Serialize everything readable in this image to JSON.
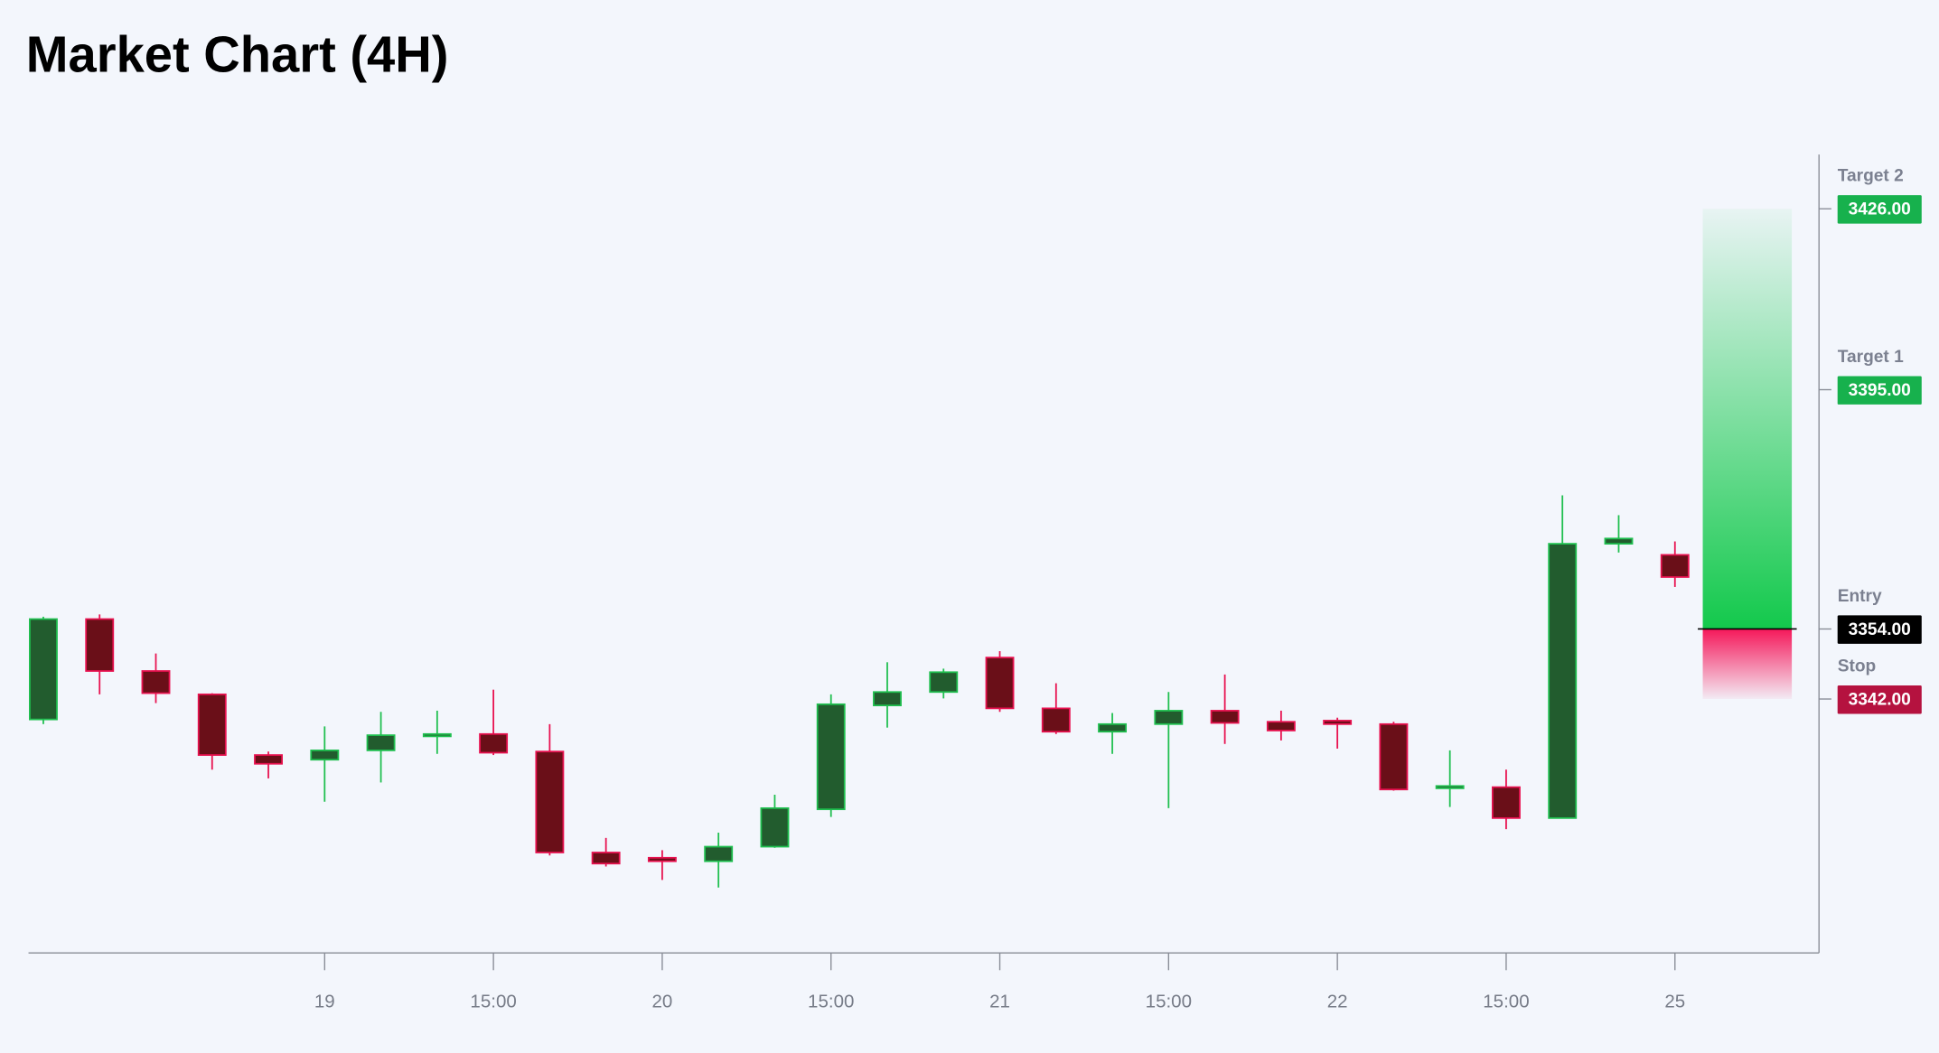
{
  "chart_data": {
    "type": "candlestick",
    "title": "Market Chart (4H)",
    "categories": [
      null,
      null,
      null,
      null,
      null,
      "19",
      null,
      null,
      "15:00",
      null,
      null,
      "20",
      null,
      null,
      "15:00",
      null,
      null,
      "21",
      null,
      null,
      "15:00",
      null,
      null,
      "22",
      null,
      null,
      "15:00",
      null,
      null,
      "25"
    ],
    "open": [
      3338.5,
      3355.7,
      3346.8,
      3342.8,
      3332.4,
      3331.6,
      3333.2,
      3335.6,
      3336.0,
      3333.0,
      3315.7,
      3314.8,
      3314.2,
      3316.7,
      3323.1,
      3340.9,
      3343.2,
      3349.1,
      3340.4,
      3336.4,
      3337.7,
      3340.0,
      3338.1,
      3338.3,
      3337.7,
      3326.7,
      3326.9,
      3321.6,
      3368.6,
      3366.7
    ],
    "high": [
      3356.1,
      3356.5,
      3349.8,
      3343.0,
      3333.0,
      3337.3,
      3339.8,
      3340.0,
      3343.6,
      3337.7,
      3318.2,
      3316.1,
      3319.1,
      3325.6,
      3342.8,
      3348.3,
      3347.2,
      3350.2,
      3344.7,
      3339.6,
      3343.2,
      3346.2,
      3340.0,
      3338.8,
      3338.1,
      3333.2,
      3329.9,
      3376.9,
      3373.5,
      3369.0
    ],
    "low": [
      3337.7,
      3342.8,
      3341.3,
      3329.9,
      3328.4,
      3324.4,
      3327.7,
      3332.6,
      3332.4,
      3315.2,
      3313.3,
      3311.0,
      3309.7,
      3316.5,
      3321.8,
      3337.1,
      3342.1,
      3339.8,
      3336.0,
      3332.6,
      3323.3,
      3334.3,
      3334.9,
      3333.5,
      3326.3,
      3323.5,
      3319.7,
      3321.6,
      3367.1,
      3361.2
    ],
    "close": [
      3355.7,
      3346.8,
      3343.0,
      3332.4,
      3330.9,
      3333.2,
      3335.8,
      3336.0,
      3332.8,
      3315.7,
      3313.8,
      3314.2,
      3316.7,
      3323.3,
      3341.1,
      3343.2,
      3346.6,
      3340.4,
      3336.4,
      3337.7,
      3340.0,
      3337.9,
      3336.6,
      3337.7,
      3326.5,
      3327.1,
      3321.6,
      3368.6,
      3369.5,
      3362.9
    ],
    "up_color": "#1fbf4f",
    "up_fill": "#225c2e",
    "down_color": "#e8114f",
    "down_fill": "#6a0f18",
    "ylim": [
      3298.5,
      3435.3
    ],
    "levels": [
      {
        "name": "Target 2",
        "value": 3426,
        "label": "3426.00",
        "color": "#17b14d"
      },
      {
        "name": "Target 1",
        "value": 3395,
        "label": "3395.00",
        "color": "#17b14d"
      },
      {
        "name": "Entry",
        "value": 3354,
        "label": "3354.00",
        "color": "#000000"
      },
      {
        "name": "Stop",
        "value": 3342,
        "label": "3342.00",
        "color": "#b5123f"
      }
    ]
  }
}
